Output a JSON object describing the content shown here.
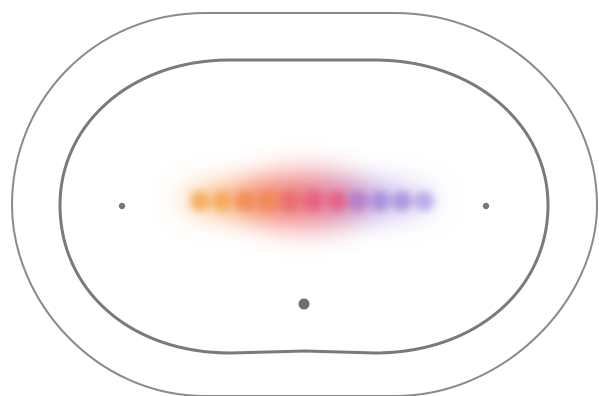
{
  "device": {
    "outer_ring_color": "#8a8a8a",
    "inner_ring_color": "#7a7a7a",
    "sensor_color": "#777777",
    "button_color": "#6f6f6f"
  },
  "light_bar": {
    "icon": "voice-activity-light-icon",
    "colors": [
      "#f6a347",
      "#f08a4b",
      "#ea6a6a",
      "#e8557d",
      "#b276c8",
      "#9d84d8",
      "#a99be3"
    ]
  }
}
